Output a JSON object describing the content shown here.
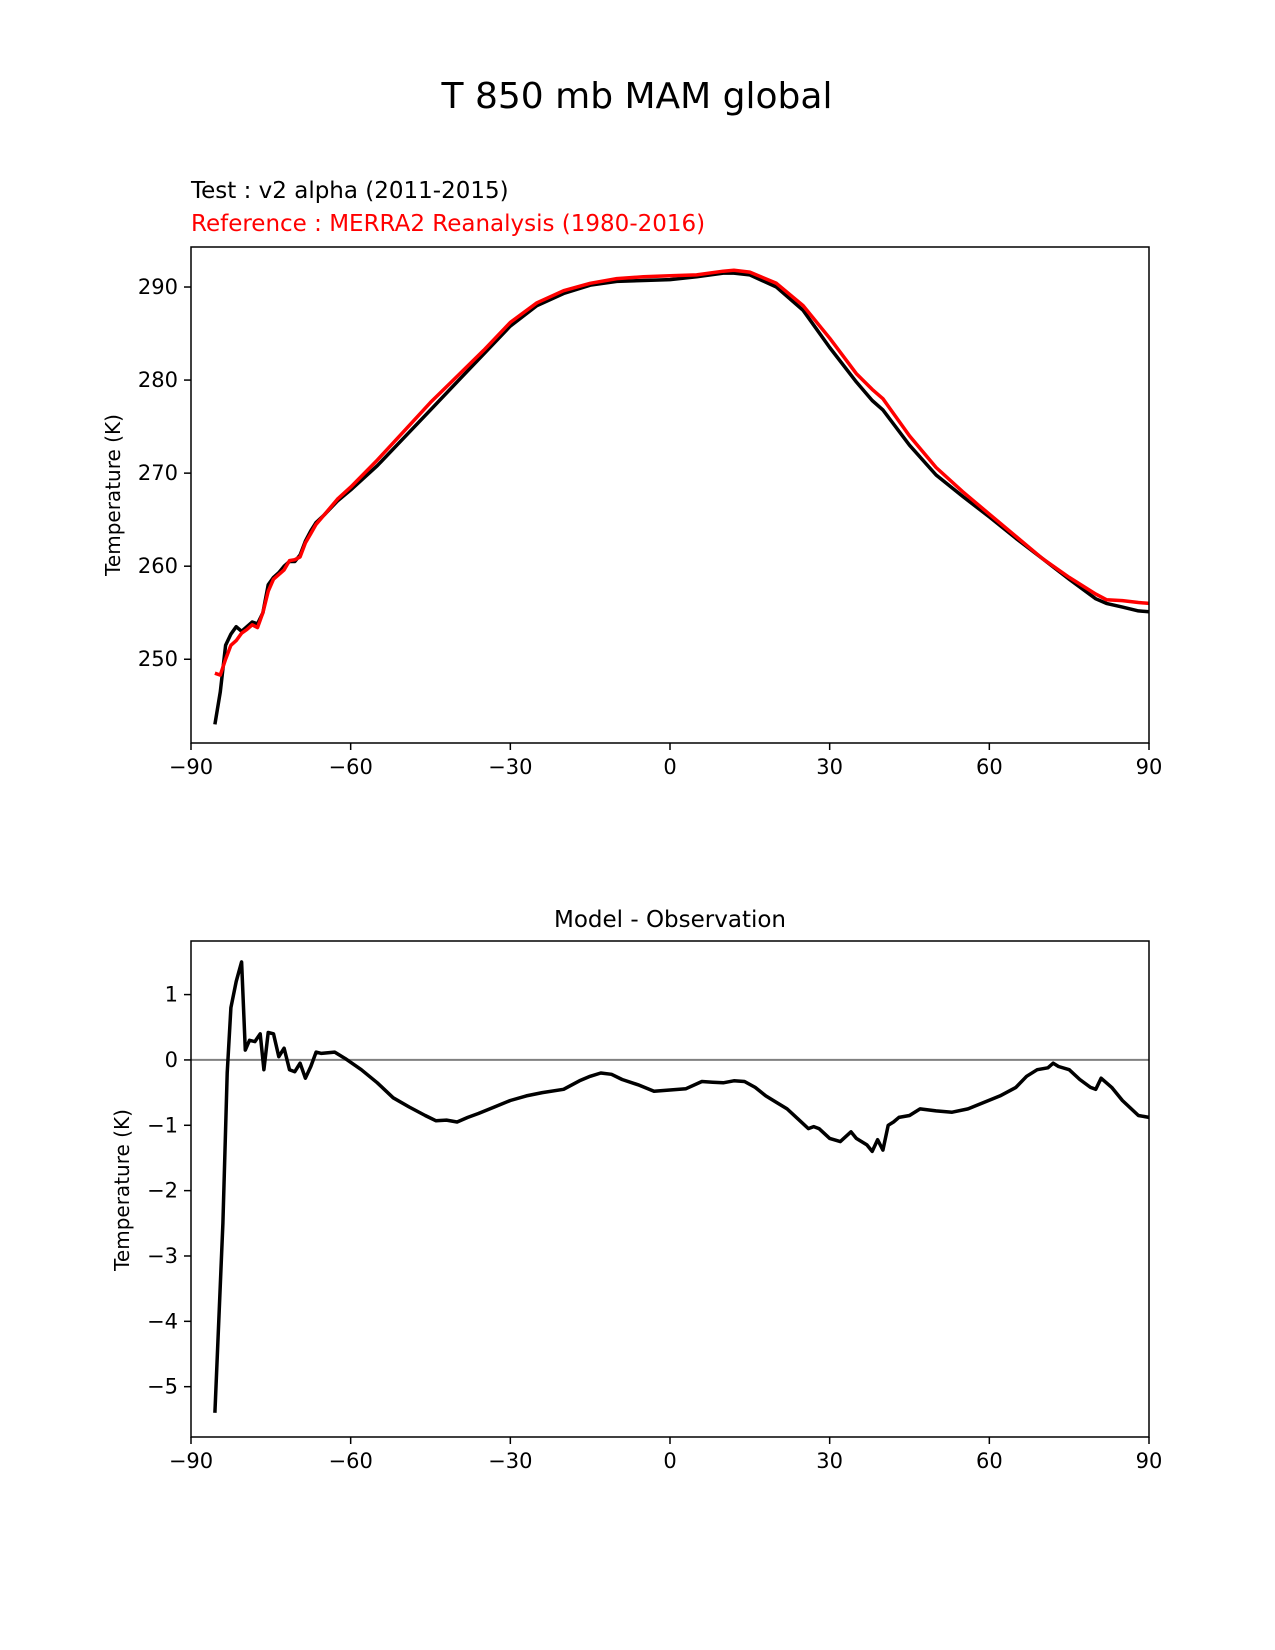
{
  "suptitle": "T 850 mb MAM global",
  "chart_data": [
    {
      "type": "line",
      "test_label": "Test : v2 alpha (2011-2015)",
      "reference_label": "Reference : MERRA2 Reanalysis (1980-2016)",
      "xlabel": "",
      "ylabel": "Temperature (K)",
      "xlim": [
        -90,
        90
      ],
      "ylim": [
        241,
        294.3
      ],
      "xticks": [
        -90,
        -60,
        -30,
        0,
        30,
        60,
        90
      ],
      "xtick_labels": [
        "−90",
        "−60",
        "−30",
        "0",
        "30",
        "60",
        "90"
      ],
      "yticks": [
        250,
        260,
        270,
        280,
        290
      ],
      "ytick_labels": [
        "250",
        "260",
        "270",
        "280",
        "290"
      ],
      "series": [
        {
          "name": "Test",
          "color": "#000000",
          "x": [
            -85.5,
            -84.5,
            -83.5,
            -82.5,
            -81.5,
            -80.5,
            -79.5,
            -78.5,
            -77.5,
            -76.5,
            -75.5,
            -74.5,
            -73.5,
            -72.5,
            -71.5,
            -70.5,
            -69.5,
            -68.5,
            -67.5,
            -66.5,
            -65,
            -62.5,
            -60,
            -55,
            -50,
            -45,
            -40,
            -35,
            -30,
            -25,
            -20,
            -15,
            -10,
            -5,
            0,
            5,
            10,
            12,
            15,
            20,
            25,
            30,
            35,
            38,
            40,
            45,
            50,
            55,
            60,
            65,
            70,
            75,
            80,
            82,
            85,
            88,
            90
          ],
          "values": [
            243,
            246.5,
            251.5,
            252.7,
            253.5,
            253,
            253.5,
            254,
            253.8,
            255,
            258,
            258.8,
            259.3,
            260,
            260.5,
            260.5,
            261.2,
            262.7,
            263.8,
            264.7,
            265.5,
            267,
            268.2,
            270.8,
            273.8,
            276.8,
            279.8,
            282.8,
            285.8,
            288,
            289.3,
            290.2,
            290.6,
            290.7,
            290.8,
            291.1,
            291.5,
            291.5,
            291.3,
            290,
            287.5,
            283.5,
            279.8,
            277.8,
            276.8,
            273,
            269.8,
            267.5,
            265.3,
            263,
            260.8,
            258.6,
            256.5,
            256,
            255.6,
            255.2,
            255.1
          ]
        },
        {
          "name": "Reference",
          "color": "#ff0000",
          "x": [
            -85.5,
            -84.5,
            -83.5,
            -82.5,
            -81.5,
            -80.5,
            -79.5,
            -78.5,
            -77.5,
            -76.5,
            -75.5,
            -74.5,
            -73.5,
            -72.5,
            -71.5,
            -70.5,
            -69.5,
            -68.5,
            -67.5,
            -66.5,
            -65,
            -62.5,
            -60,
            -55,
            -50,
            -45,
            -40,
            -35,
            -30,
            -25,
            -20,
            -15,
            -10,
            -5,
            0,
            5,
            10,
            12,
            15,
            20,
            25,
            30,
            35,
            38,
            40,
            45,
            50,
            55,
            60,
            65,
            70,
            75,
            80,
            82,
            85,
            88,
            90
          ],
          "values": [
            248.5,
            248.3,
            250,
            251.5,
            252,
            252.8,
            253.2,
            253.7,
            253.4,
            255,
            257.3,
            258.6,
            259.1,
            259.6,
            260.6,
            260.7,
            261,
            262.5,
            263.5,
            264.5,
            265.5,
            267.2,
            268.5,
            271.4,
            274.5,
            277.6,
            280.4,
            283.2,
            286.2,
            288.3,
            289.6,
            290.4,
            290.9,
            291.1,
            291.2,
            291.3,
            291.7,
            291.8,
            291.6,
            290.4,
            288,
            284.5,
            280.7,
            279,
            278,
            274,
            270.6,
            268,
            265.6,
            263.2,
            260.8,
            258.8,
            257,
            256.4,
            256.3,
            256.1,
            256
          ]
        }
      ]
    },
    {
      "type": "line",
      "title": "Model - Observation",
      "xlabel": "",
      "ylabel": "Temperature (K)",
      "xlim": [
        -90,
        90
      ],
      "ylim": [
        -5.77,
        1.82
      ],
      "xticks": [
        -90,
        -60,
        -30,
        0,
        30,
        60,
        90
      ],
      "xtick_labels": [
        "−90",
        "−60",
        "−30",
        "0",
        "30",
        "60",
        "90"
      ],
      "yticks": [
        1,
        0,
        -1,
        -2,
        -3,
        -4,
        -5
      ],
      "ytick_labels": [
        "1",
        "0",
        "−1",
        "−2",
        "−3",
        "−4",
        "−5"
      ],
      "zero_line": {
        "value": 0,
        "color": "#808080"
      },
      "series": [
        {
          "name": "Model - Observation",
          "color": "#000000",
          "x": [
            -85.5,
            -84,
            -83.2,
            -82.5,
            -81.5,
            -80.5,
            -79.8,
            -79,
            -78,
            -77,
            -76.3,
            -75.5,
            -74.5,
            -73.5,
            -72.5,
            -71.5,
            -70.5,
            -69.5,
            -68.5,
            -67.5,
            -66.5,
            -65.5,
            -63,
            -61,
            -58,
            -55,
            -52,
            -49,
            -46,
            -44,
            -42,
            -40,
            -38,
            -36,
            -33,
            -30,
            -27,
            -24,
            -20,
            -17,
            -15,
            -13,
            -11,
            -9,
            -6,
            -3,
            0,
            3,
            6,
            8,
            10,
            12,
            14,
            16,
            18,
            20,
            22,
            24,
            26,
            27,
            28,
            30,
            32,
            34,
            35,
            36,
            37,
            38,
            39,
            40,
            41,
            42,
            43,
            45,
            47,
            50,
            53,
            56,
            59,
            62,
            65,
            67,
            69,
            71,
            72,
            73,
            75,
            77,
            79,
            80,
            81,
            82,
            83,
            85,
            88,
            90
          ],
          "values": [
            -5.4,
            -2.5,
            -0.2,
            0.8,
            1.2,
            1.5,
            0.15,
            0.3,
            0.28,
            0.4,
            -0.15,
            0.42,
            0.4,
            0.05,
            0.18,
            -0.15,
            -0.18,
            -0.05,
            -0.28,
            -0.1,
            0.12,
            0.1,
            0.12,
            0.02,
            -0.15,
            -0.35,
            -0.58,
            -0.72,
            -0.85,
            -0.93,
            -0.92,
            -0.95,
            -0.88,
            -0.82,
            -0.72,
            -0.62,
            -0.55,
            -0.5,
            -0.45,
            -0.32,
            -0.25,
            -0.2,
            -0.22,
            -0.3,
            -0.38,
            -0.48,
            -0.46,
            -0.44,
            -0.33,
            -0.34,
            -0.35,
            -0.32,
            -0.33,
            -0.42,
            -0.55,
            -0.65,
            -0.75,
            -0.9,
            -1.05,
            -1.02,
            -1.05,
            -1.2,
            -1.25,
            -1.1,
            -1.2,
            -1.25,
            -1.3,
            -1.4,
            -1.22,
            -1.38,
            -1.0,
            -0.95,
            -0.88,
            -0.85,
            -0.75,
            -0.78,
            -0.8,
            -0.75,
            -0.65,
            -0.55,
            -0.42,
            -0.25,
            -0.15,
            -0.12,
            -0.05,
            -0.1,
            -0.15,
            -0.3,
            -0.42,
            -0.45,
            -0.28,
            -0.35,
            -0.42,
            -0.62,
            -0.85,
            -0.88
          ]
        }
      ]
    }
  ]
}
